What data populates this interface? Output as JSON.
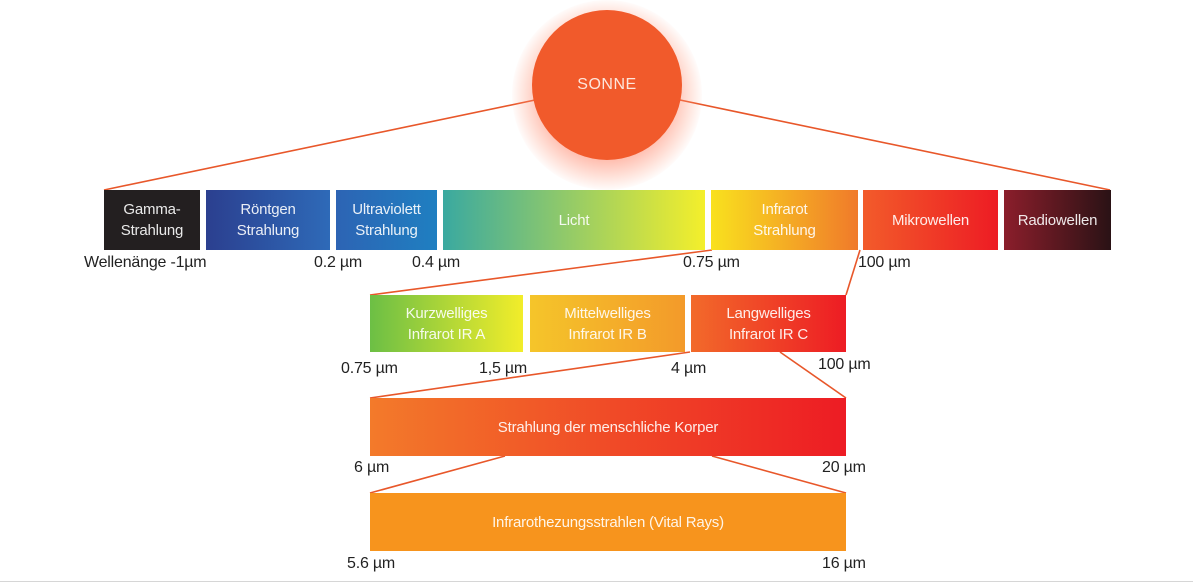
{
  "sun": {
    "label": "SONNE",
    "color": "#f15a2b"
  },
  "spectrum": [
    {
      "label": "Gamma-\nStrahlung",
      "color": "#231f20"
    },
    {
      "label": "Röntgen\nStrahlung",
      "color": "#2e5aa9"
    },
    {
      "label": "Ultraviolett\nStrahlung",
      "color": "#2a5db0"
    },
    {
      "label": "Licht",
      "gradient": [
        "#3aa9a0",
        "#f4ef2b"
      ]
    },
    {
      "label": "Infrarot\nStrahlung",
      "gradient": [
        "#f9e11e",
        "#f07a2a"
      ]
    },
    {
      "label": "Mikrowellen",
      "gradient": [
        "#f25b2a",
        "#ed1c24"
      ]
    },
    {
      "label": "Radiowellen",
      "gradient": [
        "#8b1e2b",
        "#2a1215"
      ]
    }
  ],
  "spectrum_labels": [
    "Wellenänge -1µm",
    "0.2 µm",
    "0.4 µm",
    "0.75 µm",
    "100 µm"
  ],
  "infrared": [
    {
      "label": "Kurzwelliges\nInfrarot IR A",
      "gradient": [
        "#6cbf45",
        "#f2ed2a"
      ]
    },
    {
      "label": "Mittelwelliges\nInfrarot IR B",
      "gradient": [
        "#f5c52a",
        "#f39a2a"
      ]
    },
    {
      "label": "Langwelliges\nInfrarot IR C",
      "gradient": [
        "#f26a2a",
        "#ed1c24"
      ]
    }
  ],
  "infrared_labels": [
    "0.75 µm",
    "1,5 µm",
    "4 µm",
    "100 µm"
  ],
  "body_radiation": {
    "label": "Strahlung der menschliche Korper",
    "gradient": [
      "#f37a2a",
      "#ed1c24"
    ]
  },
  "body_labels": [
    "6 µm",
    "20 µm"
  ],
  "vital_rays": {
    "label": "Infrarothezungsstrahlen (Vital Rays)",
    "color": "#f7941d"
  },
  "vital_labels": [
    "5.6 µm",
    "16 µm"
  ],
  "line_color": "#e8572a"
}
